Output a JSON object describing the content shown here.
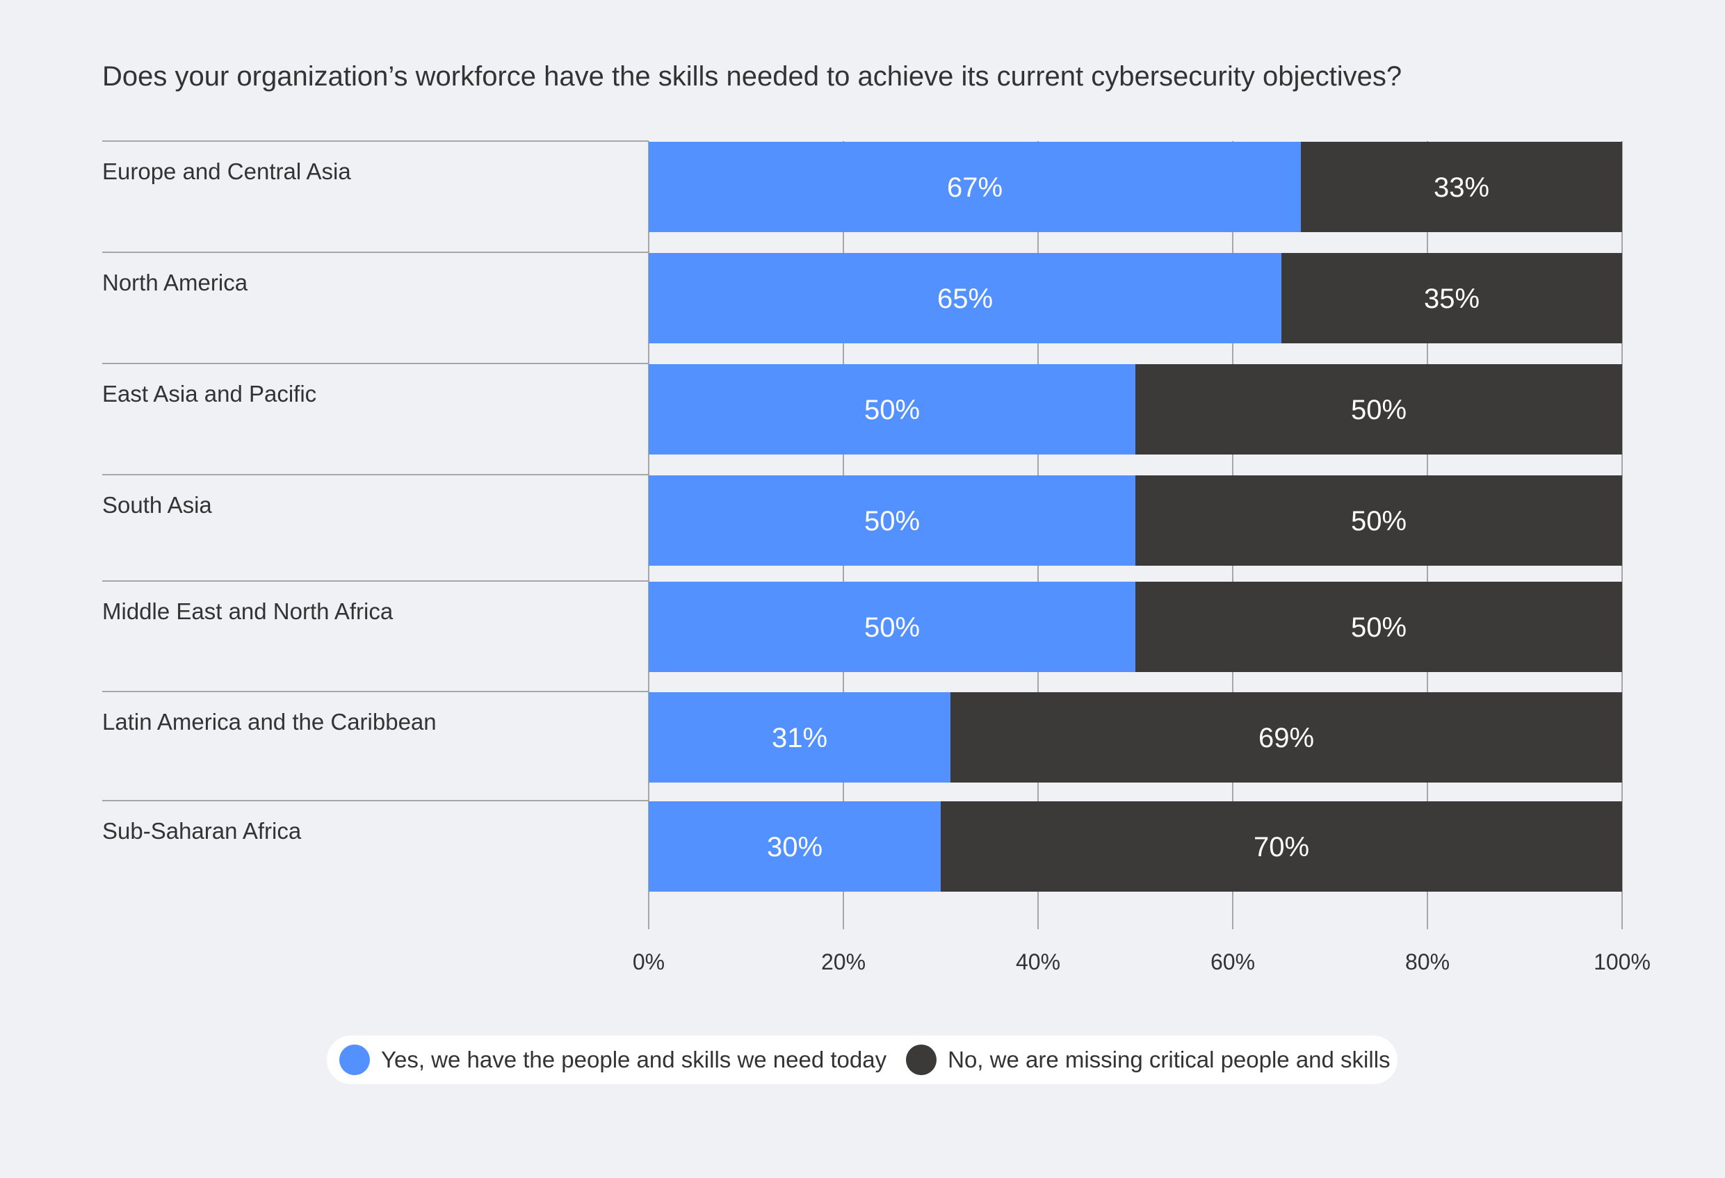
{
  "colors": {
    "background": "#eff1f4",
    "yes": "#5291ff",
    "no": "#3b3a39",
    "separator": "#a6a6a6",
    "grid": "#a6a6a6",
    "text": "#333333",
    "bar_label": "#ffffff"
  },
  "chart_data": {
    "type": "bar",
    "orientation": "horizontal",
    "stacked": true,
    "title": "Does your organization’s workforce have the skills needed to achieve its current cybersecurity objectives?",
    "categories": [
      "Europe and Central Asia",
      "North America",
      "East Asia and Pacific",
      "South Asia",
      "Middle East and North Africa",
      "Latin America and the Caribbean",
      "Sub-Saharan Africa"
    ],
    "series": [
      {
        "name": "Yes, we have the people and skills we need today",
        "color": "#5291ff",
        "values": [
          67,
          65,
          50,
          50,
          50,
          31,
          30
        ],
        "labels": [
          "67%",
          "65%",
          "50%",
          "50%",
          "50%",
          "31%",
          "30%"
        ]
      },
      {
        "name": "No, we are missing critical people and skills",
        "color": "#3b3a39",
        "values": [
          33,
          35,
          50,
          50,
          50,
          69,
          70
        ],
        "labels": [
          "33%",
          "35%",
          "50%",
          "50%",
          "50%",
          "69%",
          "70%"
        ]
      }
    ],
    "xlim": [
      0,
      100
    ],
    "xticks": [
      0,
      20,
      40,
      60,
      80,
      100
    ],
    "xtick_labels": [
      "0%",
      "20%",
      "40%",
      "60%",
      "80%",
      "100%"
    ],
    "xlabel": "",
    "ylabel": "",
    "grid": true,
    "legend_position": "bottom"
  }
}
